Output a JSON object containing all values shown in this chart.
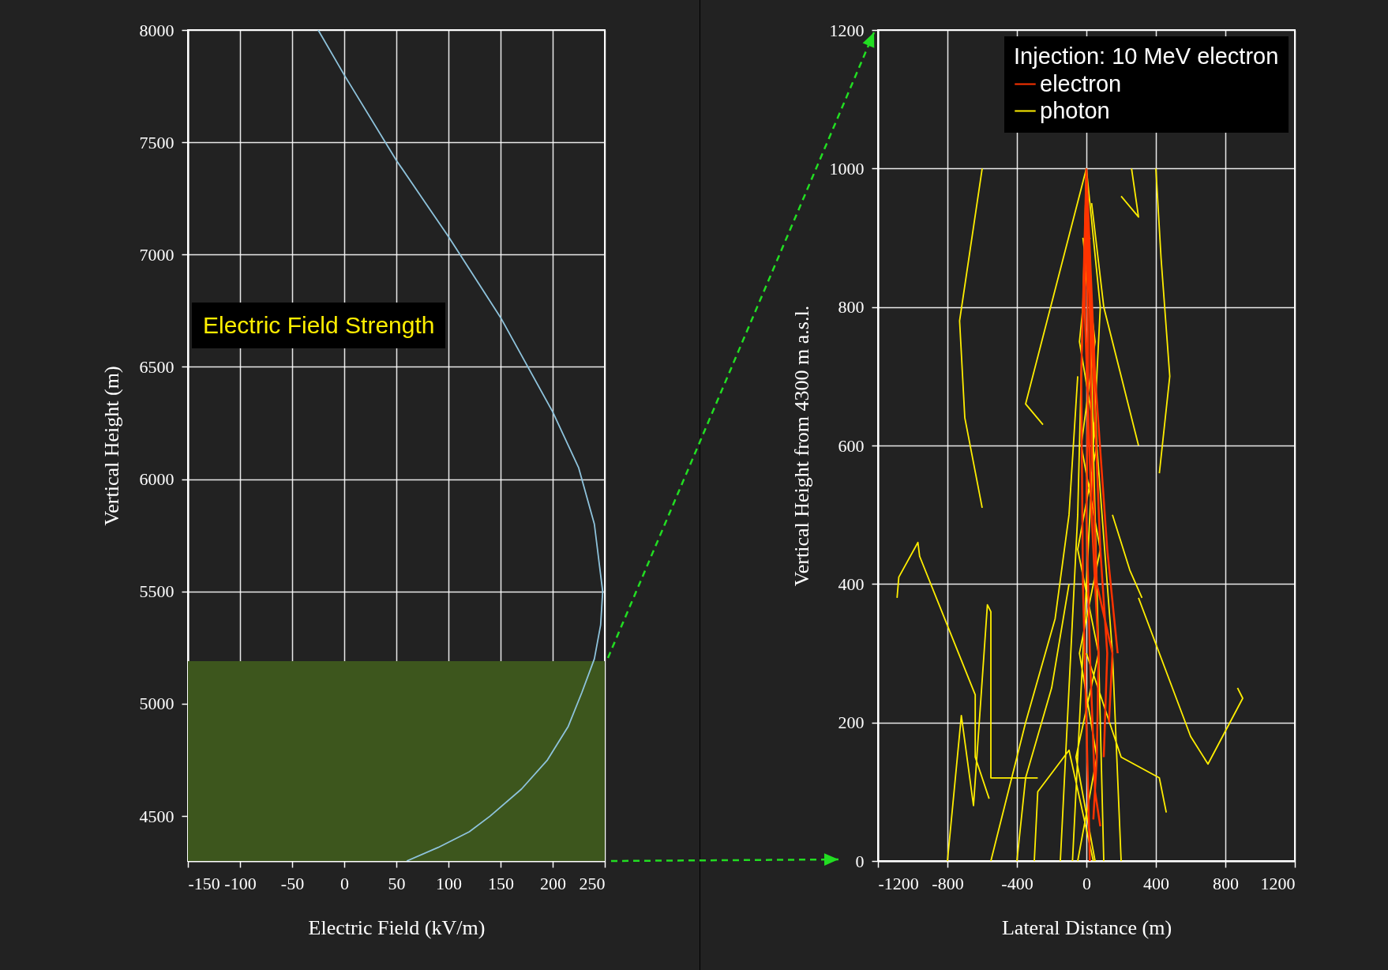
{
  "chart_data": [
    {
      "type": "line",
      "xlabel": "Electric Field (kV/m)",
      "ylabel": "Vertical Height (m)",
      "xlim": [
        -150,
        250
      ],
      "xticks": [
        -150,
        -100,
        -50,
        0,
        50,
        100,
        150,
        200,
        250
      ],
      "ylim": [
        4300,
        8000
      ],
      "yticks": [
        4500,
        5000,
        5500,
        6000,
        6500,
        7000,
        7500,
        8000
      ],
      "grid": true,
      "annotations": [
        "Electric Field Strength"
      ],
      "bands": [
        {
          "axis": "y",
          "from": 4300,
          "to": 5190,
          "color": "#3d561d"
        }
      ],
      "series": [
        {
          "color": "#8ec3dc",
          "x": [
            -25,
            0,
            50,
            100,
            150,
            200,
            225,
            240,
            248,
            246,
            240,
            228,
            215,
            195,
            170,
            140,
            120,
            90,
            60
          ],
          "values": [
            8000,
            7800,
            7420,
            7080,
            6720,
            6300,
            6050,
            5800,
            5500,
            5350,
            5200,
            5050,
            4900,
            4750,
            4620,
            4500,
            4430,
            4360,
            4300
          ]
        }
      ]
    },
    {
      "type": "line",
      "xlabel": "Lateral Distance (m)",
      "ylabel": "Vertical Height from 4300 m a.s.l.",
      "xlim": [
        -1200,
        1200
      ],
      "xticks": [
        -1200,
        -800,
        -400,
        0,
        400,
        800,
        1200
      ],
      "ylim": [
        0,
        1200
      ],
      "yticks": [
        0,
        200,
        400,
        600,
        800,
        1000,
        1200
      ],
      "grid": true,
      "legend": "top right",
      "legend_title": "Injection: 10 MeV electron",
      "series": [
        {
          "name": "electron",
          "color": "#ff3300",
          "x": [
            0,
            -30,
            -20,
            0,
            20,
            null,
            0,
            40,
            80,
            120,
            100,
            null,
            0,
            20,
            30,
            60,
            150,
            130,
            null,
            0,
            10,
            0,
            20,
            50,
            80,
            null,
            0,
            50,
            120,
            180,
            null,
            0,
            -10,
            30,
            70,
            60,
            40
          ],
          "values": [
            1000,
            700,
            400,
            200,
            0,
            null,
            1000,
            700,
            450,
            300,
            150,
            null,
            1000,
            800,
            600,
            400,
            300,
            200,
            null,
            1000,
            700,
            500,
            300,
            100,
            50,
            null,
            1000,
            700,
            450,
            300,
            null,
            1000,
            800,
            500,
            300,
            150,
            60
          ]
        },
        {
          "name": "photon",
          "color": "#ffee00",
          "x": [
            -600,
            -730,
            -700,
            -600,
            null,
            -1090,
            -1080,
            -970,
            -960,
            -640,
            -640,
            -560,
            null,
            -800,
            -720,
            -650,
            -570,
            -550,
            -550,
            -280,
            null,
            400,
            430,
            480,
            420,
            null,
            200,
            300,
            260,
            null,
            0,
            -350,
            -250,
            null,
            300,
            600,
            700,
            900,
            870,
            null,
            0,
            200,
            420,
            460,
            null,
            -150,
            -50,
            0,
            null,
            100,
            50,
            0,
            null,
            -80,
            0,
            80,
            0,
            null,
            200,
            150,
            60,
            0,
            null,
            -400,
            -350,
            -200,
            -100,
            null,
            150,
            250,
            320,
            null,
            -300,
            -280,
            -100,
            40,
            null,
            -550,
            -350,
            -180,
            -100,
            -50,
            null,
            300,
            200,
            100,
            30,
            null,
            -50,
            60,
            -40,
            80,
            -30,
            50,
            -20,
            null,
            50,
            -60,
            70,
            -50,
            60,
            -40,
            20
          ],
          "values": [
            1000,
            780,
            640,
            510,
            null,
            380,
            410,
            460,
            440,
            240,
            150,
            90,
            null,
            0,
            210,
            80,
            370,
            360,
            120,
            120,
            null,
            1000,
            870,
            700,
            560,
            null,
            960,
            930,
            1000,
            null,
            1000,
            660,
            630,
            null,
            380,
            180,
            140,
            235,
            250,
            null,
            300,
            150,
            120,
            70,
            null,
            0,
            500,
            1000,
            null,
            0,
            500,
            1000,
            null,
            0,
            400,
            800,
            1000,
            null,
            0,
            300,
            600,
            1000,
            null,
            0,
            120,
            250,
            400,
            null,
            500,
            420,
            380,
            null,
            0,
            100,
            160,
            0,
            null,
            0,
            200,
            350,
            500,
            700,
            null,
            600,
            700,
            800,
            950,
            null,
            0,
            150,
            300,
            450,
            600,
            750,
            900,
            null,
            0,
            150,
            300,
            450,
            600,
            750,
            900
          ]
        }
      ]
    }
  ]
}
